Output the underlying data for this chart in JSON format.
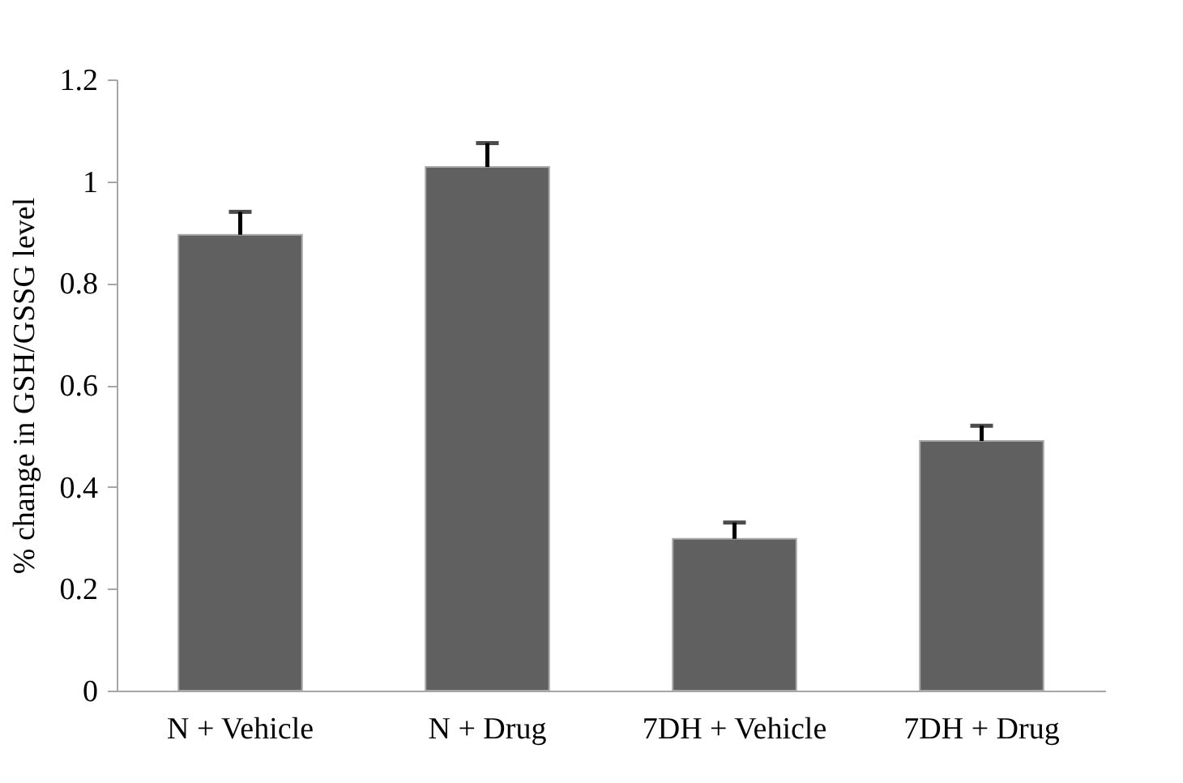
{
  "chart_data": {
    "type": "bar",
    "ylabel": "% change in GSH/GSSG level",
    "categories": [
      "N + Vehicle",
      "N + Drug",
      "7DH + Vehicle",
      "7DH + Drug"
    ],
    "values": [
      0.895,
      1.028,
      0.298,
      0.49
    ],
    "errors": [
      [
        0.895,
        0.94
      ],
      [
        1.028,
        1.075
      ],
      [
        0.298,
        0.33
      ],
      [
        0.49,
        0.52
      ]
    ],
    "color": "#606060",
    "ylim": [
      0,
      1.2
    ],
    "yticks": [
      0,
      0.2,
      0.4,
      0.6,
      0.8,
      1,
      1.2
    ],
    "grid": false
  }
}
